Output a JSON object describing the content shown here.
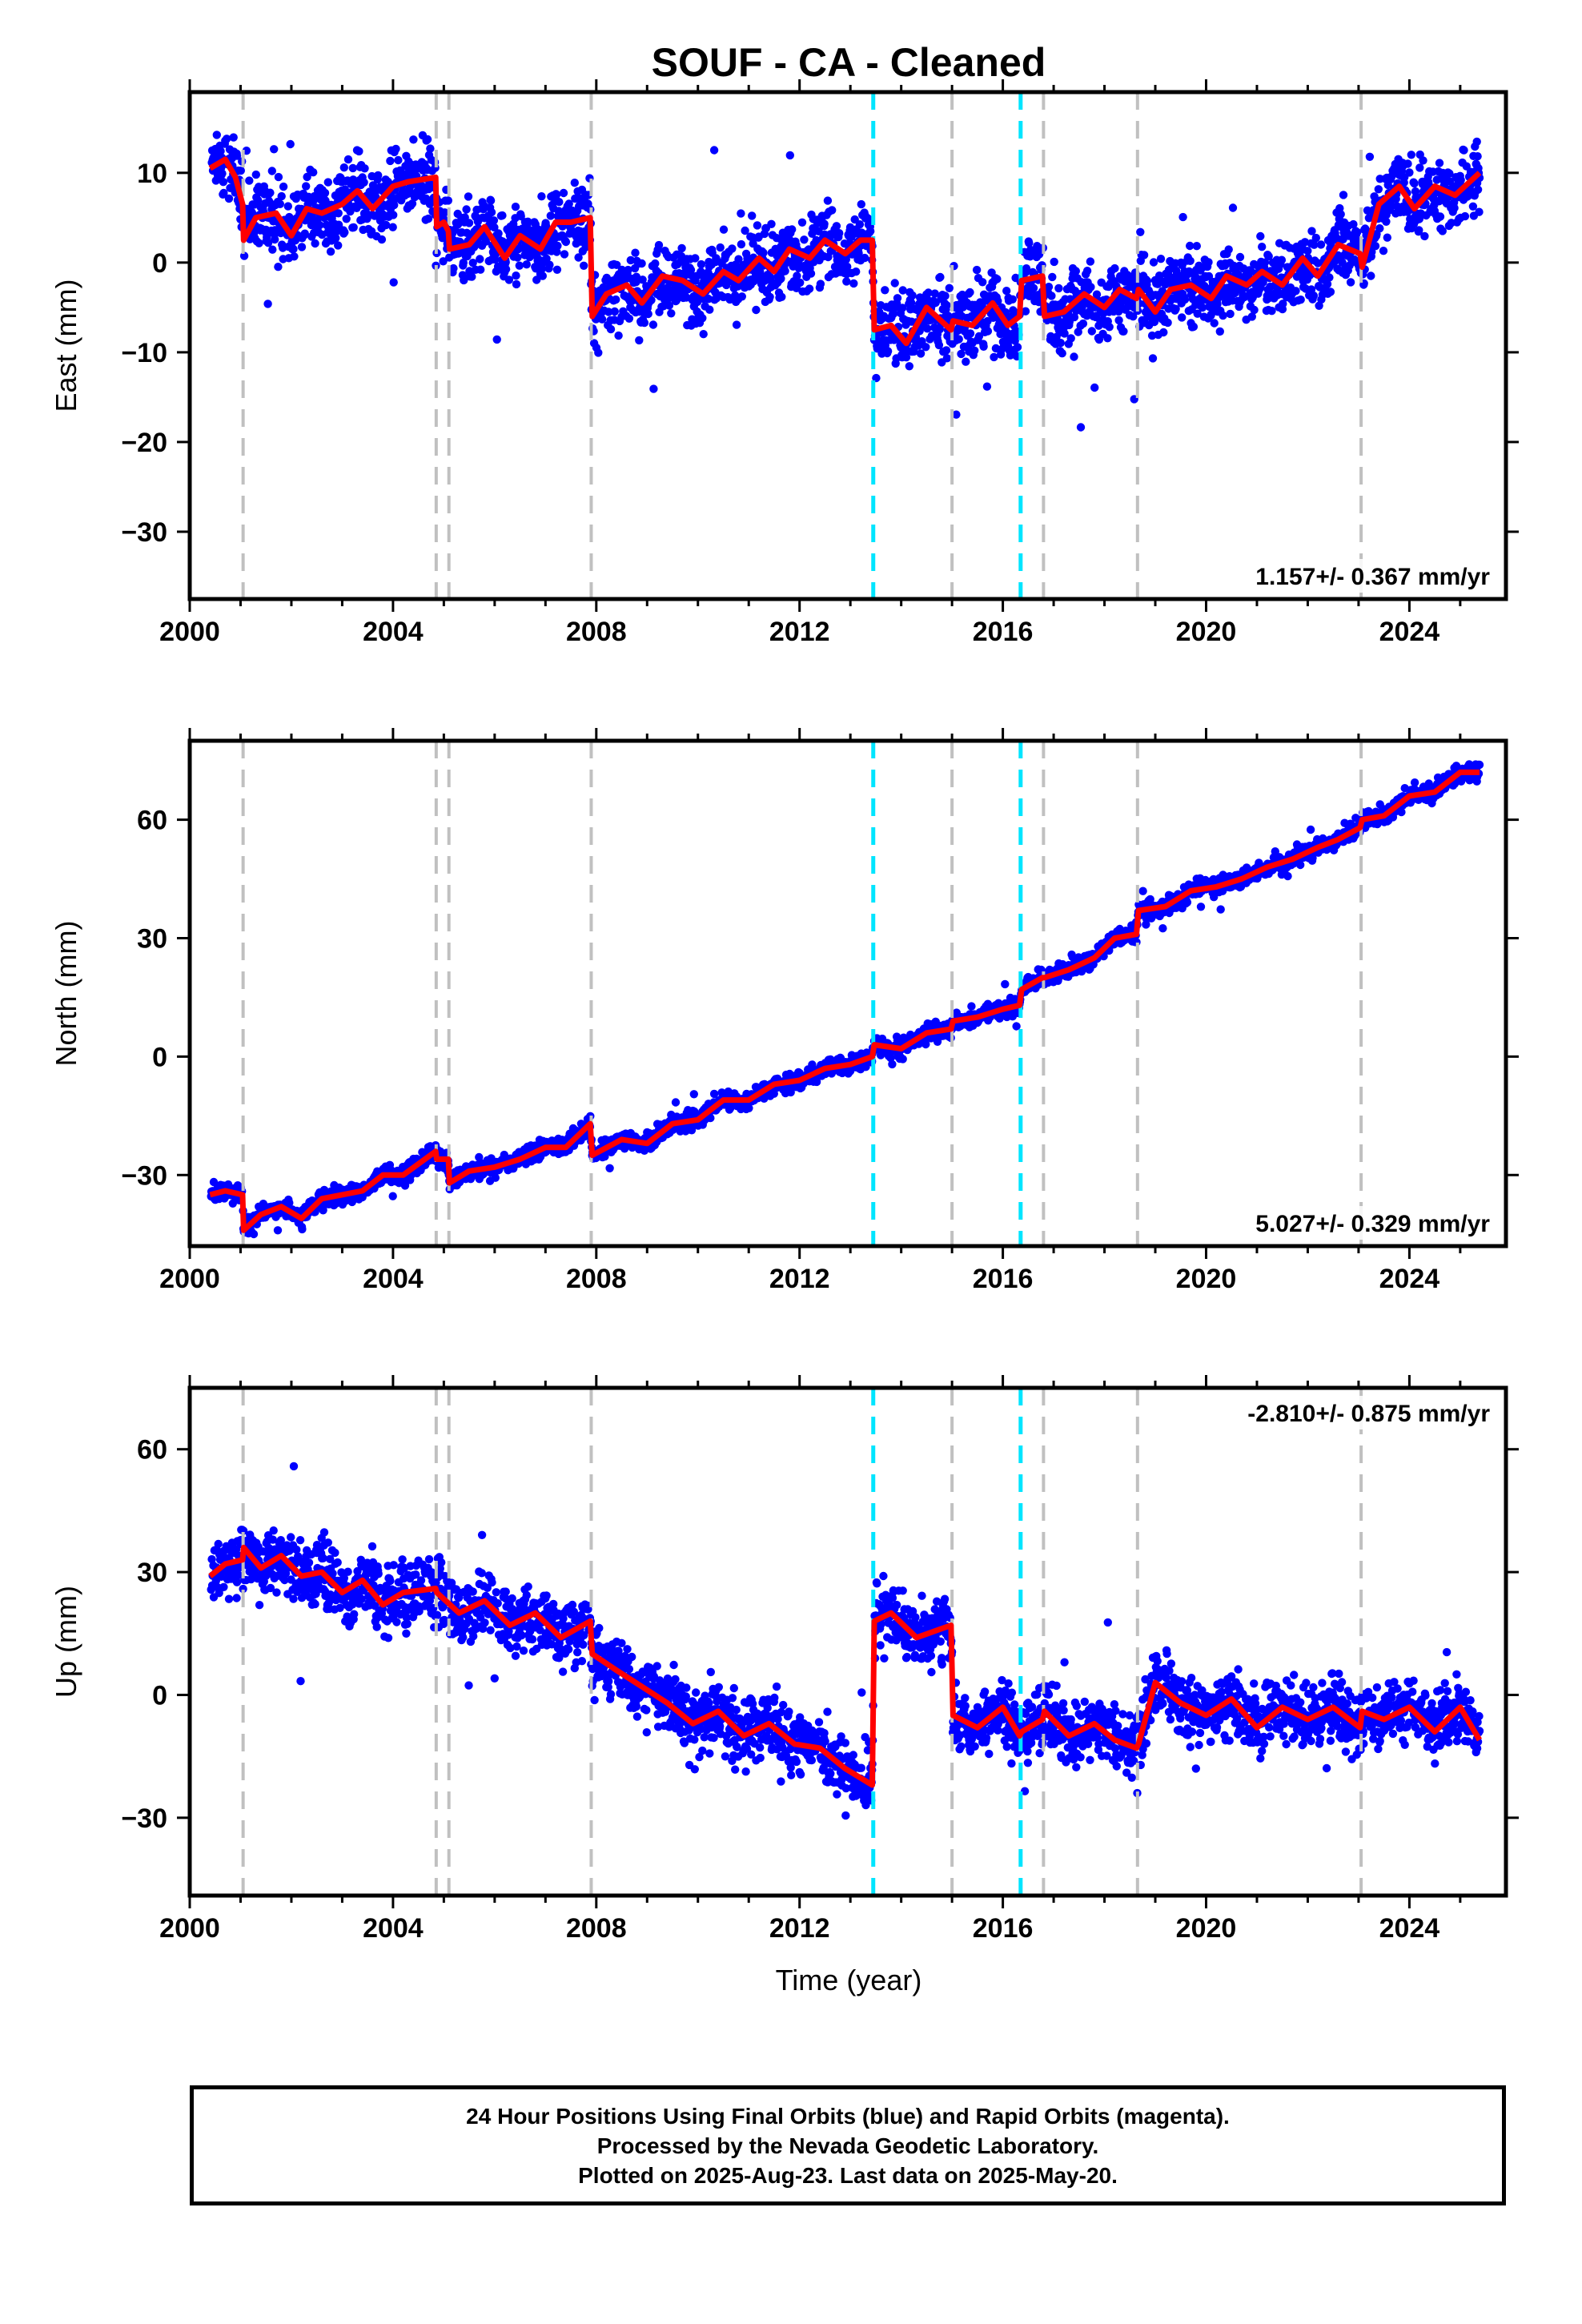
{
  "title": "SOUF  - CA - Cleaned",
  "footer": {
    "line1": "24 Hour Positions Using Final Orbits (blue) and Rapid Orbits (magenta).",
    "line2": "Processed by the Nevada Geodetic Laboratory.",
    "line3": "Plotted on 2025-Aug-23. Last data on 2025-May-20."
  },
  "colors": {
    "points": "#0000ff",
    "model": "#ff0000",
    "gray_breaks": "#c0c0c0",
    "cyan_breaks": "#00e5ff"
  },
  "chart_data": [
    {
      "type": "scatter",
      "panel": "east",
      "ylabel": "East (mm)",
      "xlabel": "",
      "xlim": [
        2000.0,
        2025.9
      ],
      "ylim": [
        -37.5,
        19
      ],
      "yticks": [
        10,
        0,
        -10,
        -20,
        -30
      ],
      "xticks": [
        2000,
        2004,
        2008,
        2012,
        2016,
        2020,
        2024
      ],
      "annotation": "1.157+/- 0.367 mm/yr",
      "annotation_pos": "bottom-right",
      "gray_breaks": [
        2001.05,
        2004.85,
        2005.1,
        2007.9,
        2015.0,
        2016.8,
        2018.65,
        2023.05
      ],
      "cyan_breaks": [
        2013.45,
        2016.35
      ],
      "model_x": [
        2000.4,
        2000.7,
        2000.9,
        2001.04,
        2001.06,
        2001.3,
        2001.7,
        2002.0,
        2002.3,
        2002.6,
        2003.0,
        2003.3,
        2003.6,
        2004.0,
        2004.3,
        2004.84,
        2004.86,
        2005.0,
        2005.09,
        2005.11,
        2005.5,
        2005.8,
        2006.2,
        2006.5,
        2006.9,
        2007.2,
        2007.5,
        2007.88,
        2007.92,
        2008.2,
        2008.6,
        2008.9,
        2009.3,
        2009.7,
        2010.1,
        2010.5,
        2010.8,
        2011.2,
        2011.5,
        2011.8,
        2012.2,
        2012.5,
        2012.9,
        2013.2,
        2013.43,
        2013.47,
        2013.8,
        2014.1,
        2014.5,
        2014.98,
        2015.02,
        2015.4,
        2015.8,
        2016.1,
        2016.33,
        2016.37,
        2016.78,
        2016.82,
        2017.2,
        2017.6,
        2018.0,
        2018.3,
        2018.63,
        2018.67,
        2019.0,
        2019.3,
        2019.7,
        2020.1,
        2020.4,
        2020.8,
        2021.1,
        2021.5,
        2021.9,
        2022.2,
        2022.6,
        2023.03,
        2023.07,
        2023.4,
        2023.8,
        2024.1,
        2024.5,
        2024.9,
        2025.38
      ],
      "model_y": [
        10.5,
        11.5,
        9.5,
        6.5,
        2.5,
        5.0,
        5.5,
        3.0,
        6.0,
        5.5,
        6.5,
        8.0,
        6.0,
        8.5,
        9.0,
        9.5,
        4.0,
        4.5,
        3.5,
        1.5,
        2.0,
        4.0,
        0.5,
        3.0,
        1.5,
        4.5,
        4.5,
        5.0,
        -6.0,
        -3.5,
        -2.5,
        -4.5,
        -1.5,
        -2.0,
        -3.5,
        -1.0,
        -2.0,
        0.5,
        -1.0,
        1.5,
        0.5,
        2.5,
        1.0,
        2.5,
        2.5,
        -7.5,
        -7.0,
        -9.0,
        -5.0,
        -7.5,
        -6.5,
        -7.0,
        -4.5,
        -7.0,
        -6.0,
        -2.0,
        -1.5,
        -6.0,
        -5.5,
        -3.5,
        -5.0,
        -3.0,
        -4.0,
        -3.0,
        -5.5,
        -3.0,
        -2.5,
        -4.0,
        -1.5,
        -2.5,
        -1.0,
        -2.5,
        0.5,
        -1.5,
        2.0,
        1.0,
        -0.5,
        6.5,
        8.5,
        6.0,
        8.5,
        7.5,
        10.0
      ]
    },
    {
      "type": "scatter",
      "panel": "north",
      "ylabel": "North (mm)",
      "xlabel": "",
      "xlim": [
        2000.0,
        2025.9
      ],
      "ylim": [
        -48,
        80
      ],
      "yticks": [
        60,
        30,
        0,
        -30
      ],
      "xticks": [
        2000,
        2004,
        2008,
        2012,
        2016,
        2020,
        2024
      ],
      "annotation": "5.027+/- 0.329 mm/yr",
      "annotation_pos": "bottom-right",
      "gray_breaks": [
        2001.05,
        2004.85,
        2005.1,
        2007.9,
        2015.0,
        2016.8,
        2018.65,
        2023.05
      ],
      "cyan_breaks": [
        2013.45,
        2016.35
      ],
      "model_x": [
        2000.4,
        2000.7,
        2001.04,
        2001.06,
        2001.4,
        2001.8,
        2002.2,
        2002.6,
        2003.0,
        2003.4,
        2003.8,
        2004.2,
        2004.84,
        2004.86,
        2005.09,
        2005.11,
        2005.5,
        2006.0,
        2006.5,
        2007.0,
        2007.4,
        2007.88,
        2007.92,
        2008.5,
        2009.0,
        2009.5,
        2010.0,
        2010.5,
        2011.0,
        2011.5,
        2012.0,
        2012.5,
        2013.0,
        2013.43,
        2013.47,
        2014.0,
        2014.5,
        2014.98,
        2015.02,
        2015.5,
        2016.0,
        2016.33,
        2016.37,
        2016.78,
        2016.82,
        2017.3,
        2017.8,
        2018.2,
        2018.63,
        2018.67,
        2019.2,
        2019.7,
        2020.2,
        2020.7,
        2021.2,
        2021.7,
        2022.2,
        2022.6,
        2023.03,
        2023.07,
        2023.5,
        2024.0,
        2024.5,
        2025.0,
        2025.38
      ],
      "model_y": [
        -35,
        -34,
        -35,
        -44,
        -40,
        -38,
        -41,
        -36,
        -35,
        -34,
        -30,
        -30,
        -24,
        -26,
        -26,
        -32,
        -29,
        -28,
        -26,
        -23,
        -23,
        -17,
        -25,
        -21,
        -22,
        -17,
        -16,
        -11,
        -11,
        -7,
        -6,
        -3,
        -2,
        0,
        3,
        2,
        6,
        7,
        9,
        10,
        12,
        13,
        17,
        20,
        20,
        22,
        25,
        30,
        31,
        37,
        38,
        42,
        43,
        45,
        48,
        50,
        53,
        55,
        58,
        60,
        61,
        66,
        67,
        72,
        72
      ]
    },
    {
      "type": "scatter",
      "panel": "up",
      "ylabel": "Up (mm)",
      "xlabel": "Time (year)",
      "xlim": [
        2000.0,
        2025.9
      ],
      "ylim": [
        -49,
        75
      ],
      "yticks": [
        60,
        30,
        0,
        -30
      ],
      "xticks": [
        2000,
        2004,
        2008,
        2012,
        2016,
        2020,
        2024
      ],
      "annotation": "-2.810+/- 0.875 mm/yr",
      "annotation_pos": "top-right",
      "gray_breaks": [
        2001.05,
        2004.85,
        2005.1,
        2007.9,
        2015.0,
        2016.8,
        2018.65,
        2023.05
      ],
      "cyan_breaks": [
        2013.45,
        2016.35
      ],
      "model_x": [
        2000.4,
        2000.7,
        2001.04,
        2001.06,
        2001.4,
        2001.8,
        2002.2,
        2002.6,
        2003.0,
        2003.4,
        2003.8,
        2004.2,
        2004.84,
        2004.86,
        2005.3,
        2005.8,
        2006.3,
        2006.8,
        2007.3,
        2007.88,
        2007.92,
        2008.4,
        2008.9,
        2009.4,
        2009.9,
        2010.4,
        2010.9,
        2011.4,
        2011.9,
        2012.4,
        2012.9,
        2013.43,
        2013.47,
        2013.8,
        2014.3,
        2014.98,
        2015.02,
        2015.5,
        2016.0,
        2016.33,
        2016.37,
        2016.78,
        2016.82,
        2017.3,
        2017.8,
        2018.2,
        2018.63,
        2018.67,
        2019.0,
        2019.5,
        2020.0,
        2020.5,
        2021.0,
        2021.5,
        2022.0,
        2022.5,
        2023.03,
        2023.07,
        2023.5,
        2024.0,
        2024.5,
        2025.0,
        2025.38
      ],
      "model_y": [
        29,
        32,
        33,
        36,
        31,
        34,
        29,
        30,
        25,
        28,
        22,
        25,
        26,
        25,
        20,
        23,
        17,
        20,
        14,
        18,
        10,
        6,
        2,
        -2,
        -7,
        -4,
        -10,
        -7,
        -12,
        -13,
        -18,
        -22,
        18,
        20,
        14,
        17,
        -5,
        -8,
        -3,
        -10,
        -9,
        -6,
        -4,
        -10,
        -7,
        -11,
        -13,
        -12,
        3,
        -2,
        -5,
        -1,
        -8,
        -3,
        -6,
        -3,
        -8,
        -4,
        -6,
        -3,
        -9,
        -3,
        -11
      ],
      "point_density": "daily positions, 2000.4-2025.38"
    }
  ]
}
